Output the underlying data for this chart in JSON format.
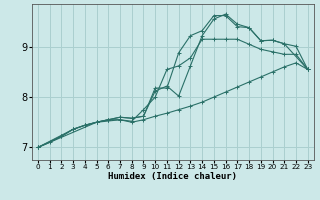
{
  "xlabel": "Humidex (Indice chaleur)",
  "ylabel": "",
  "bg_color": "#cce8e8",
  "grid_color": "#aacfcf",
  "line_color": "#2a7068",
  "xlim": [
    -0.5,
    23.5
  ],
  "ylim": [
    6.75,
    9.85
  ],
  "yticks": [
    7,
    8,
    9
  ],
  "xticks": [
    0,
    1,
    2,
    3,
    4,
    5,
    6,
    7,
    8,
    9,
    10,
    11,
    12,
    13,
    14,
    15,
    16,
    17,
    18,
    19,
    20,
    21,
    22,
    23
  ],
  "lines": [
    [
      [
        0,
        7.0
      ],
      [
        1,
        7.1
      ],
      [
        2,
        7.22
      ],
      [
        3,
        7.36
      ],
      [
        4,
        7.44
      ],
      [
        5,
        7.5
      ],
      [
        6,
        7.55
      ],
      [
        7,
        7.6
      ],
      [
        8,
        7.58
      ],
      [
        9,
        7.62
      ],
      [
        10,
        8.12
      ],
      [
        11,
        8.22
      ],
      [
        12,
        8.02
      ],
      [
        13,
        8.62
      ],
      [
        14,
        9.22
      ],
      [
        15,
        9.55
      ],
      [
        16,
        9.65
      ],
      [
        17,
        9.45
      ],
      [
        18,
        9.38
      ],
      [
        19,
        9.12
      ],
      [
        20,
        9.13
      ],
      [
        21,
        9.06
      ],
      [
        22,
        9.01
      ],
      [
        23,
        8.55
      ]
    ],
    [
      [
        0,
        7.0
      ],
      [
        2,
        7.22
      ],
      [
        3,
        7.36
      ],
      [
        4,
        7.44
      ],
      [
        5,
        7.5
      ],
      [
        6,
        7.55
      ],
      [
        7,
        7.6
      ],
      [
        8,
        7.58
      ],
      [
        9,
        7.62
      ],
      [
        10,
        8.18
      ],
      [
        11,
        8.18
      ],
      [
        12,
        8.88
      ],
      [
        13,
        9.22
      ],
      [
        14,
        9.32
      ],
      [
        15,
        9.62
      ],
      [
        16,
        9.62
      ],
      [
        17,
        9.4
      ],
      [
        18,
        9.38
      ],
      [
        19,
        9.12
      ],
      [
        20,
        9.13
      ],
      [
        21,
        9.06
      ],
      [
        23,
        8.55
      ]
    ],
    [
      [
        0,
        7.0
      ],
      [
        3,
        7.36
      ],
      [
        4,
        7.44
      ],
      [
        5,
        7.5
      ],
      [
        6,
        7.55
      ],
      [
        7,
        7.55
      ],
      [
        8,
        7.52
      ],
      [
        9,
        7.75
      ],
      [
        10,
        8.0
      ],
      [
        11,
        8.55
      ],
      [
        12,
        8.62
      ],
      [
        13,
        8.78
      ],
      [
        14,
        9.15
      ],
      [
        15,
        9.15
      ],
      [
        16,
        9.15
      ],
      [
        17,
        9.15
      ],
      [
        18,
        9.05
      ],
      [
        19,
        8.95
      ],
      [
        20,
        8.9
      ],
      [
        21,
        8.85
      ],
      [
        22,
        8.85
      ],
      [
        23,
        8.55
      ]
    ],
    [
      [
        0,
        7.0
      ],
      [
        5,
        7.5
      ],
      [
        7,
        7.55
      ],
      [
        8,
        7.5
      ],
      [
        9,
        7.55
      ],
      [
        10,
        7.62
      ],
      [
        11,
        7.68
      ],
      [
        12,
        7.75
      ],
      [
        13,
        7.82
      ],
      [
        14,
        7.9
      ],
      [
        15,
        8.0
      ],
      [
        16,
        8.1
      ],
      [
        17,
        8.2
      ],
      [
        18,
        8.3
      ],
      [
        19,
        8.4
      ],
      [
        20,
        8.5
      ],
      [
        21,
        8.6
      ],
      [
        22,
        8.68
      ],
      [
        23,
        8.55
      ]
    ]
  ]
}
